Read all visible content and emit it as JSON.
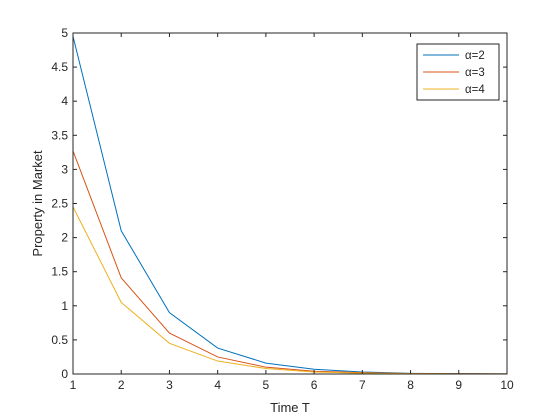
{
  "chart_data": {
    "type": "line",
    "title": "",
    "xlabel": "Time T",
    "ylabel": "Property in Market",
    "xlim": [
      1,
      10
    ],
    "ylim": [
      0,
      5
    ],
    "xticks": [
      1,
      2,
      3,
      4,
      5,
      6,
      7,
      8,
      9,
      10
    ],
    "yticks": [
      0,
      0.5,
      1,
      1.5,
      2,
      2.5,
      3,
      3.5,
      4,
      4.5,
      5
    ],
    "grid": false,
    "legend_position": "top-right",
    "x": [
      1,
      2,
      3,
      4,
      5,
      6,
      7,
      8,
      9,
      10
    ],
    "series": [
      {
        "name": "α=2",
        "color": "#0072BD",
        "values": [
          4.95,
          2.1,
          0.9,
          0.38,
          0.16,
          0.07,
          0.03,
          0.01,
          0.005,
          0.002
        ]
      },
      {
        "name": "α=3",
        "color": "#D95319",
        "values": [
          3.27,
          1.41,
          0.6,
          0.25,
          0.1,
          0.04,
          0.02,
          0.007,
          0.003,
          0.001
        ]
      },
      {
        "name": "α=4",
        "color": "#EDB120",
        "values": [
          2.45,
          1.05,
          0.45,
          0.19,
          0.08,
          0.03,
          0.013,
          0.005,
          0.002,
          0.001
        ]
      }
    ]
  }
}
